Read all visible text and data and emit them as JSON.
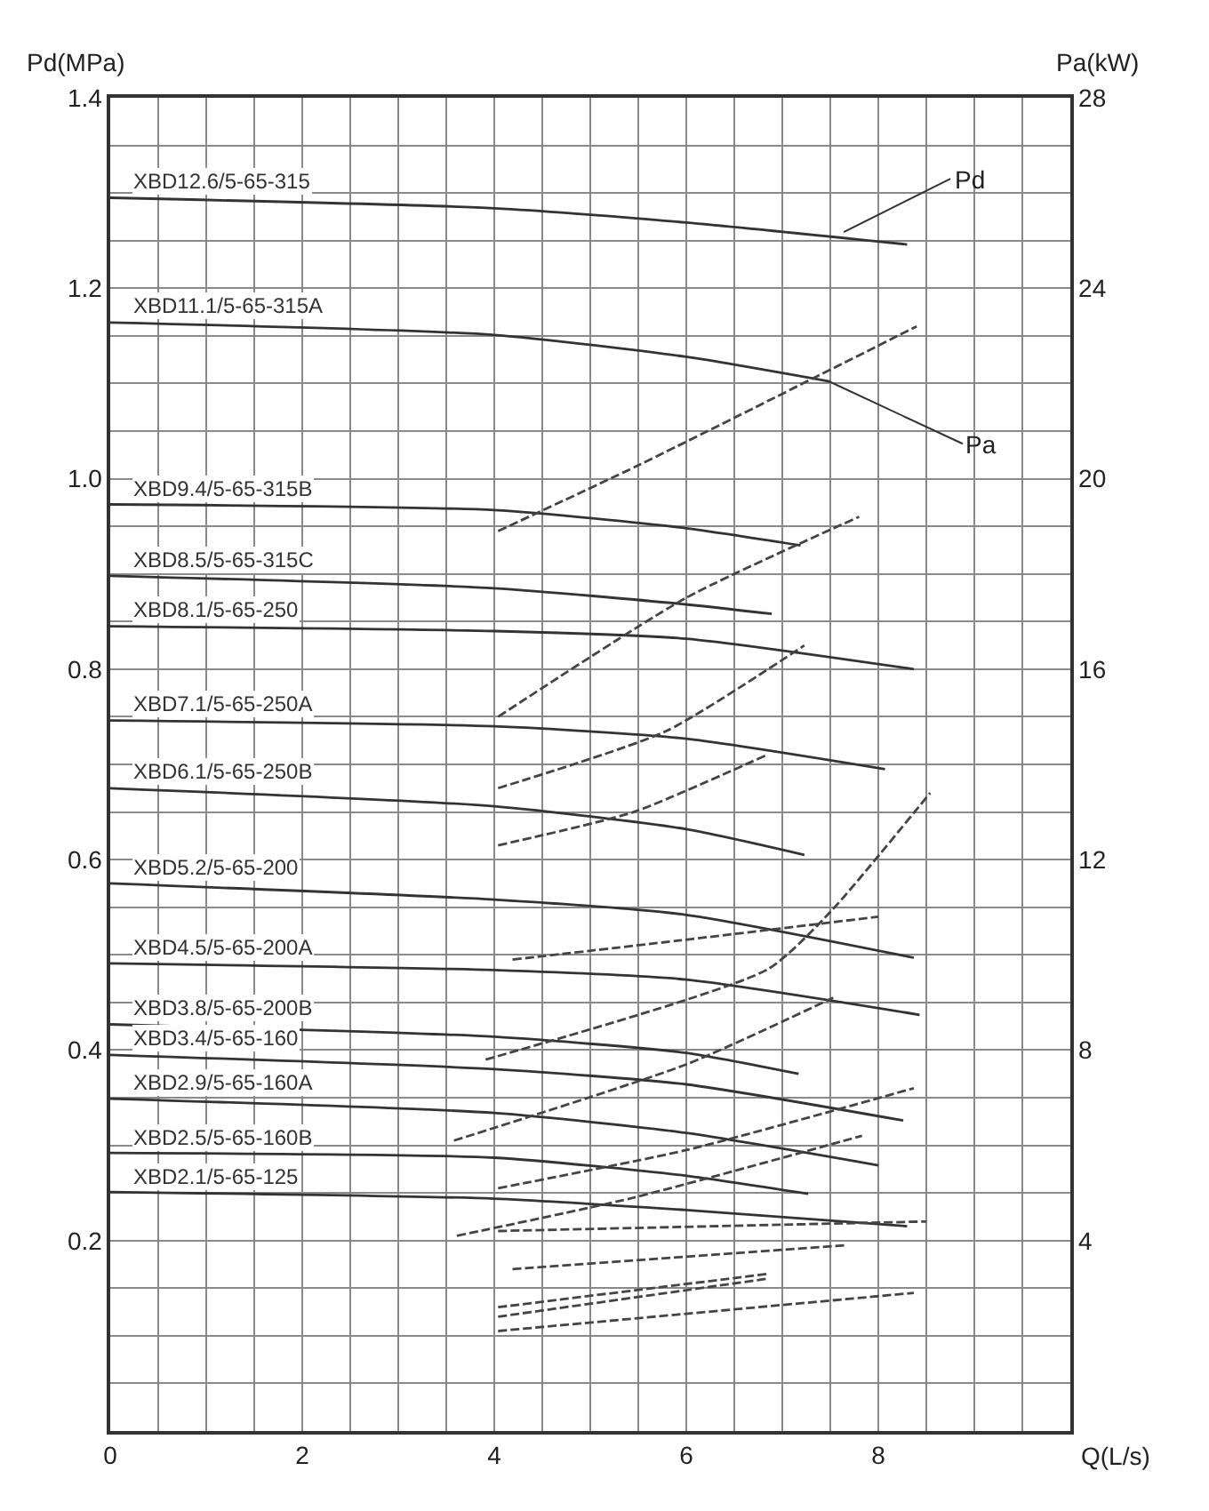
{
  "chart_data": {
    "type": "line",
    "xlabel": "Q(L/s)",
    "ylabel": "Pd(MPa)",
    "y2label": "Pa(kW)",
    "xlim": [
      0,
      10
    ],
    "ylim": [
      0,
      1.4
    ],
    "y2lim": [
      0,
      28
    ],
    "xticks": [
      0,
      {
        "value": 0.5,
        "label": null
      },
      {
        "value": 1,
        "label": null
      },
      {
        "value": 1.5,
        "label": null
      },
      2,
      {
        "value": 2.5,
        "label": null
      },
      {
        "value": 3,
        "label": null
      },
      {
        "value": 3.5,
        "label": null
      },
      4,
      {
        "value": 4.5,
        "label": null
      },
      {
        "value": 5,
        "label": null
      },
      {
        "value": 5.5,
        "label": null
      },
      6,
      {
        "value": 6.5,
        "label": null
      },
      {
        "value": 7,
        "label": null
      },
      {
        "value": 7.5,
        "label": null
      },
      8,
      {
        "value": 8.5,
        "label": null
      },
      {
        "value": 9,
        "label": null
      },
      {
        "value": 9.5,
        "label": null
      },
      {
        "value": 10,
        "label": null
      }
    ],
    "yticks": [
      {
        "value": 0,
        "label": null
      },
      {
        "value": 0.05,
        "label": null
      },
      {
        "value": 0.1,
        "label": null
      },
      {
        "value": 0.15,
        "label": null
      },
      0.2,
      {
        "value": 0.25,
        "label": null
      },
      {
        "value": 0.3,
        "label": null
      },
      {
        "value": 0.35,
        "label": null
      },
      0.4,
      {
        "value": 0.45,
        "label": null
      },
      {
        "value": 0.5,
        "label": null
      },
      {
        "value": 0.55,
        "label": null
      },
      0.6,
      {
        "value": 0.65,
        "label": null
      },
      {
        "value": 0.7,
        "label": null
      },
      {
        "value": 0.75,
        "label": null
      },
      0.8,
      {
        "value": 0.85,
        "label": null
      },
      {
        "value": 0.9,
        "label": null
      },
      {
        "value": 0.95,
        "label": null
      },
      {
        "value": 1.0,
        "label": "1.0"
      },
      {
        "value": 1.05,
        "label": null
      },
      {
        "value": 1.1,
        "label": null
      },
      {
        "value": 1.15,
        "label": null
      },
      1.2,
      {
        "value": 1.25,
        "label": null
      },
      {
        "value": 1.3,
        "label": null
      },
      {
        "value": 1.35,
        "label": null
      },
      1.4
    ],
    "y2ticks": [
      4,
      8,
      12,
      16,
      20,
      24,
      28
    ],
    "grid": true,
    "legend": false,
    "annotations": [
      {
        "text": "Pd",
        "x": 7.64,
        "y": 1.259
      },
      {
        "text": "Pa",
        "x": 7.49,
        "y": 1.102
      }
    ],
    "series": [
      {
        "name": "XBD12.6/5-65-315",
        "color": "#333333",
        "x": [
          0,
          4,
          6,
          8.3
        ],
        "values": [
          1.295,
          1.284,
          1.269,
          1.246
        ]
      },
      {
        "name": "XBD11.1/5-65-315A",
        "color": "#333333",
        "x": [
          0,
          4,
          6,
          7.5
        ],
        "values": [
          1.164,
          1.151,
          1.128,
          1.102
        ]
      },
      {
        "name": "XBD9.4/5-65-315B",
        "color": "#333333",
        "x": [
          0,
          4,
          6,
          7.19
        ],
        "values": [
          0.973,
          0.967,
          0.948,
          0.93
        ]
      },
      {
        "name": "XBD8.5/5-65-315C",
        "color": "#333333",
        "x": [
          0,
          4,
          6,
          6.89
        ],
        "values": [
          0.898,
          0.885,
          0.868,
          0.858
        ]
      },
      {
        "name": "XBD8.1/5-65-250",
        "color": "#333333",
        "x": [
          0,
          4,
          6,
          8.37
        ],
        "values": [
          0.845,
          0.84,
          0.832,
          0.8
        ]
      },
      {
        "name": "XBD7.1/5-65-250A",
        "color": "#333333",
        "x": [
          0,
          4,
          6,
          8.07
        ],
        "values": [
          0.746,
          0.74,
          0.727,
          0.695
        ]
      },
      {
        "name": "XBD6.1/5-65-250B",
        "color": "#333333",
        "x": [
          0,
          4,
          6,
          7.23
        ],
        "values": [
          0.675,
          0.656,
          0.632,
          0.605
        ]
      },
      {
        "name": "XBD5.2/5-65-200",
        "color": "#333333",
        "x": [
          0,
          4,
          6,
          8.37
        ],
        "values": [
          0.575,
          0.558,
          0.542,
          0.497
        ]
      },
      {
        "name": "XBD4.5/5-65-200A",
        "color": "#333333",
        "x": [
          0,
          4,
          6,
          8.43
        ],
        "values": [
          0.491,
          0.484,
          0.474,
          0.437
        ]
      },
      {
        "name": "XBD3.8/5-65-200B",
        "color": "#333333",
        "x": [
          0,
          4,
          6,
          7.17
        ],
        "values": [
          0.427,
          0.414,
          0.397,
          0.375
        ]
      },
      {
        "name": "XBD3.4/5-65-160",
        "color": "#333333",
        "x": [
          0,
          4,
          6,
          8.26
        ],
        "values": [
          0.395,
          0.38,
          0.364,
          0.326
        ]
      },
      {
        "name": "XBD2.9/5-65-160A",
        "color": "#333333",
        "x": [
          0,
          4,
          6,
          8.0
        ],
        "values": [
          0.349,
          0.334,
          0.313,
          0.279
        ]
      },
      {
        "name": "XBD2.5/5-65-160B",
        "color": "#333333",
        "x": [
          0,
          4,
          6,
          7.27
        ],
        "values": [
          0.292,
          0.287,
          0.268,
          0.249
        ]
      },
      {
        "name": "XBD2.1/5-65-125",
        "color": "#333333",
        "x": [
          0,
          4,
          6,
          8.3
        ],
        "values": [
          0.251,
          0.244,
          0.232,
          0.215
        ]
      },
      {
        "color": "#444444",
        "axis": "y2",
        "line_style": "dashed",
        "x": [
          4.04,
          5.52,
          8.4
        ],
        "values": [
          18.9,
          20.3,
          23.2
        ]
      },
      {
        "color": "#444444",
        "axis": "y2",
        "line_style": "dashed",
        "x": [
          4.04,
          6.0,
          7.8
        ],
        "values": [
          15.0,
          17.5,
          19.2
        ]
      },
      {
        "color": "#444444",
        "axis": "y2",
        "line_style": "dashed",
        "x": [
          4.04,
          5.79,
          7.23
        ],
        "values": [
          13.5,
          14.7,
          16.5
        ]
      },
      {
        "color": "#444444",
        "axis": "y2",
        "line_style": "dashed",
        "x": [
          4.04,
          5.45,
          6.84
        ],
        "values": [
          12.3,
          13.0,
          14.2
        ]
      },
      {
        "color": "#444444",
        "axis": "y2",
        "line_style": "dashed",
        "x": [
          3.91,
          6.85,
          7.5,
          8.54
        ],
        "values": [
          7.8,
          9.7,
          10.9,
          13.4
        ]
      },
      {
        "color": "#444444",
        "axis": "y2",
        "line_style": "dashed",
        "x": [
          4.19,
          5.92,
          8.0
        ],
        "values": [
          9.9,
          10.3,
          10.8
        ]
      },
      {
        "color": "#444444",
        "axis": "y2",
        "line_style": "dashed",
        "x": [
          3.58,
          6.0,
          7.53
        ],
        "values": [
          6.1,
          7.7,
          9.1
        ]
      },
      {
        "color": "#444444",
        "axis": "y2",
        "line_style": "dashed",
        "x": [
          4.04,
          6.0,
          8.37
        ],
        "values": [
          5.1,
          5.9,
          7.2
        ]
      },
      {
        "color": "#444444",
        "axis": "y2",
        "line_style": "dashed",
        "x": [
          3.61,
          5.45,
          7.83
        ],
        "values": [
          4.1,
          4.9,
          6.2
        ]
      },
      {
        "color": "#444444",
        "axis": "y2",
        "line_style": "dashed",
        "x": [
          4.04,
          8.5
        ],
        "values": [
          4.2,
          4.4
        ]
      },
      {
        "color": "#444444",
        "axis": "y2",
        "line_style": "dashed",
        "x": [
          4.19,
          7.66
        ],
        "values": [
          3.4,
          3.9
        ]
      },
      {
        "color": "#444444",
        "axis": "y2",
        "line_style": "dashed",
        "x": [
          4.04,
          6.85
        ],
        "values": [
          2.6,
          3.3
        ]
      },
      {
        "color": "#444444",
        "axis": "y2",
        "line_style": "dashed",
        "x": [
          4.04,
          6.85
        ],
        "values": [
          2.4,
          3.2
        ]
      },
      {
        "color": "#444444",
        "axis": "y2",
        "line_style": "dashed",
        "x": [
          4.04,
          8.37
        ],
        "values": [
          2.1,
          2.9
        ]
      }
    ]
  }
}
